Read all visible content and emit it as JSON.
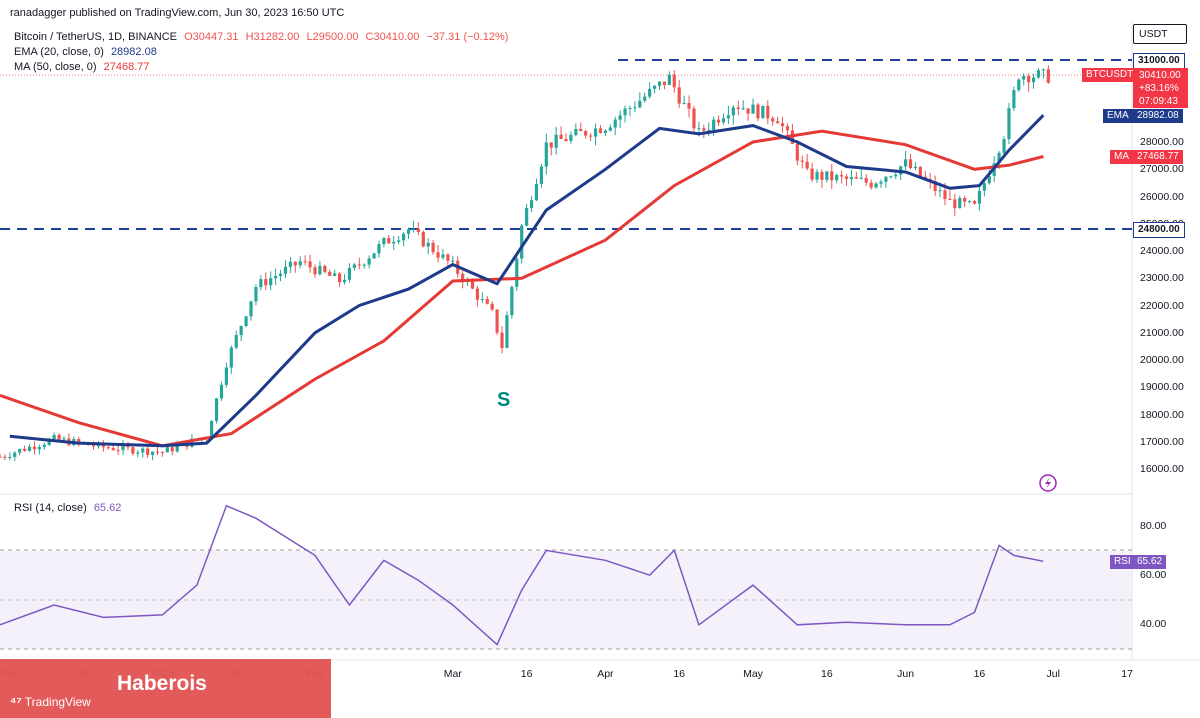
{
  "publisher_line": "ranadagger published on TradingView.com, Jun 30, 2023 16:50 UTC",
  "legend": {
    "symbol_line": "Bitcoin / TetherUS, 1D, BINANCE",
    "ohlc": {
      "o": "O30447.31",
      "h": "H31282.00",
      "l": "L29500.00",
      "c": "C30410.00",
      "chg": "−37.31 (−0.12%)"
    },
    "ema_label": "EMA (20, close, 0)",
    "ema_value": "28982.08",
    "ma_label": "MA (50, close, 0)",
    "ma_value": "27468.77",
    "rsi_label": "RSI (14, close)",
    "rsi_value": "65.62"
  },
  "price_axis": {
    "currency": "USDT",
    "ticks": [
      "16000.00",
      "17000.00",
      "18000.00",
      "19000.00",
      "20000.00",
      "21000.00",
      "22000.00",
      "23000.00",
      "24000.00",
      "25000.00",
      "26000.00",
      "27000.00",
      "28000.00"
    ],
    "tags": {
      "level_top": "31000.00",
      "symbol": "BTCUSDT",
      "price": "30410.00",
      "change": "+83.16%",
      "countdown": "07:09:43",
      "ema_tag": "EMA",
      "ema_val": "28982.08",
      "ma_tag": "MA",
      "ma_val": "27468.77",
      "level_bottom": "24800.00"
    }
  },
  "rsi_axis": {
    "ticks": [
      "80.00",
      "60.00",
      "40.00"
    ],
    "tag": "RSI",
    "value": "65.62"
  },
  "time_axis": [
    "Dec",
    "16",
    "2023",
    "16",
    "Feb",
    "Mar",
    "16",
    "Apr",
    "16",
    "May",
    "16",
    "Jun",
    "16",
    "Jul",
    "17"
  ],
  "annotation_s": "S",
  "watermark": {
    "brand": "TradingView",
    "channel": "Haberois"
  },
  "colors": {
    "up": "#26a69a",
    "down": "#ef5350",
    "ema": "#1e3a8a",
    "ma": "#e53935",
    "rsi": "#7e57c2",
    "level": "#1e3f9e",
    "red_tag": "#f23645",
    "blue_tag": "#1e3a8a"
  },
  "chart_data": {
    "type": "candlestick",
    "title": "Bitcoin / TetherUS, 1D, BINANCE",
    "y_range": [
      15200,
      32000
    ],
    "x_range": [
      "2022-11-29",
      "2023-07-17"
    ],
    "levels": [
      31000,
      24800
    ],
    "series": [
      {
        "name": "EMA (20, close, 0)",
        "x": [
          "2022-12-01",
          "2022-12-15",
          "2023-01-01",
          "2023-01-10",
          "2023-01-20",
          "2023-02-01",
          "2023-02-10",
          "2023-02-20",
          "2023-03-01",
          "2023-03-10",
          "2023-03-20",
          "2023-04-01",
          "2023-04-12",
          "2023-04-20",
          "2023-05-01",
          "2023-05-10",
          "2023-05-20",
          "2023-06-01",
          "2023-06-10",
          "2023-06-16",
          "2023-06-22",
          "2023-06-29"
        ],
        "values": [
          17200,
          16950,
          16850,
          16950,
          18700,
          21000,
          22000,
          22600,
          23500,
          22800,
          25500,
          27000,
          28500,
          28300,
          28600,
          28000,
          27100,
          26900,
          26300,
          26400,
          27700,
          28982
        ]
      },
      {
        "name": "MA (50, close, 0)",
        "x": [
          "2022-11-29",
          "2022-12-15",
          "2023-01-01",
          "2023-01-15",
          "2023-02-01",
          "2023-02-15",
          "2023-03-01",
          "2023-03-15",
          "2023-04-01",
          "2023-04-15",
          "2023-05-01",
          "2023-05-15",
          "2023-06-01",
          "2023-06-15",
          "2023-06-22",
          "2023-06-29"
        ],
        "values": [
          18700,
          17700,
          16850,
          17300,
          19300,
          20700,
          22900,
          23000,
          24400,
          26400,
          28000,
          28400,
          27900,
          27000,
          27150,
          27468
        ]
      },
      {
        "name": "RSI (14, close)",
        "x": [
          "2022-11-29",
          "2022-12-10",
          "2022-12-20",
          "2023-01-01",
          "2023-01-08",
          "2023-01-14",
          "2023-01-20",
          "2023-02-01",
          "2023-02-08",
          "2023-02-15",
          "2023-02-22",
          "2023-03-01",
          "2023-03-10",
          "2023-03-15",
          "2023-03-20",
          "2023-04-01",
          "2023-04-10",
          "2023-04-15",
          "2023-04-20",
          "2023-05-01",
          "2023-05-10",
          "2023-05-20",
          "2023-06-01",
          "2023-06-10",
          "2023-06-15",
          "2023-06-20",
          "2023-06-23",
          "2023-06-29"
        ],
        "values": [
          40,
          48,
          43,
          44,
          56,
          88,
          83,
          68,
          48,
          66,
          58,
          48,
          32,
          54,
          70,
          66,
          60,
          70,
          40,
          56,
          40,
          41,
          40,
          40,
          45,
          72,
          68,
          65.62
        ]
      }
    ],
    "candles_close": {
      "x": [
        "2022-11-29",
        "2022-12-10",
        "2022-12-20",
        "2023-01-01",
        "2023-01-10",
        "2023-01-14",
        "2023-01-20",
        "2023-01-29",
        "2023-02-06",
        "2023-02-15",
        "2023-02-20",
        "2023-03-01",
        "2023-03-09",
        "2023-03-11",
        "2023-03-15",
        "2023-03-20",
        "2023-04-01",
        "2023-04-10",
        "2023-04-14",
        "2023-04-20",
        "2023-04-27",
        "2023-05-06",
        "2023-05-12",
        "2023-05-25",
        "2023-06-01",
        "2023-06-10",
        "2023-06-15",
        "2023-06-21",
        "2023-06-24",
        "2023-06-29"
      ],
      "values": [
        16450,
        17100,
        16800,
        16620,
        17200,
        19900,
        22700,
        23600,
        22900,
        24300,
        24800,
        23450,
        21700,
        20500,
        24900,
        27900,
        28600,
        29800,
        30350,
        28300,
        29400,
        28900,
        26800,
        26500,
        27200,
        25800,
        25600,
        28300,
        30500,
        30410
      ]
    },
    "x_ticks": [
      "Dec",
      "16",
      "2023",
      "16",
      "Feb",
      "Mar",
      "16",
      "Apr",
      "16",
      "May",
      "16",
      "Jun",
      "16",
      "Jul",
      "17"
    ],
    "ylabel": "USDT"
  }
}
